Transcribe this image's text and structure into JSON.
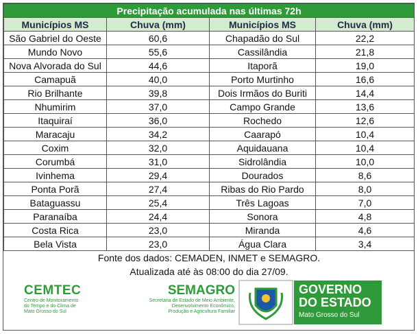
{
  "table": {
    "title": "Precipitação acumulada nas últimas 72h",
    "header": [
      "Municípios MS",
      "Chuva (mm)",
      "Municípios MS",
      "Chuva (mm)"
    ],
    "rows": [
      [
        "São Gabriel do Oeste",
        "60,6",
        "Chapadão do Sul",
        "22,2"
      ],
      [
        "Mundo Novo",
        "55,6",
        "Cassilândia",
        "21,8"
      ],
      [
        "Nova Alvorada do Sul",
        "44,6",
        "Itaporã",
        "19,0"
      ],
      [
        "Camapuã",
        "40,0",
        "Porto Murtinho",
        "16,6"
      ],
      [
        "Rio Brilhante",
        "39,8",
        "Dois Irmãos do Buriti",
        "14,4"
      ],
      [
        "Nhumirim",
        "37,0",
        "Campo Grande",
        "13,6"
      ],
      [
        "Itaquiraí",
        "36,0",
        "Rochedo",
        "12,6"
      ],
      [
        "Maracaju",
        "34,2",
        "Caarapó",
        "10,4"
      ],
      [
        "Coxim",
        "32,0",
        "Aquidauana",
        "10,4"
      ],
      [
        "Corumbá",
        "31,0",
        "Sidrolândia",
        "10,0"
      ],
      [
        "Ivinhema",
        "29,4",
        "Dourados",
        "8,6"
      ],
      [
        "Ponta Porã",
        "27,4",
        "Ribas do Rio Pardo",
        "8,0"
      ],
      [
        "Bataguassu",
        "25,4",
        "Três Lagoas",
        "7,0"
      ],
      [
        "Paranaíba",
        "24,4",
        "Sonora",
        "4,8"
      ],
      [
        "Costa Rica",
        "23,0",
        "Miranda",
        "4,6"
      ],
      [
        "Bela Vista",
        "23,0",
        "Água Clara",
        "3,4"
      ]
    ],
    "footer": [
      "Fonte dos dados: CEMADEN, INMET e SEMAGRO.",
      "Atualizada até às 08:00 do dia 27/09."
    ]
  },
  "logos": {
    "cemtec": {
      "name": "CEMTEC",
      "lines": [
        "Centro de Monitoramento",
        "do Tempo e do Clima de",
        "Mato Grosso do Sul"
      ]
    },
    "semagro": {
      "name": "SEMAGRO",
      "lines": [
        "Secretaria de Estado de Meio Ambiente,",
        "Desenvolvimento Econômico,",
        "Produção e Agricultura Familiar"
      ]
    },
    "governo": {
      "lines": [
        "GOVERNO",
        "DO ESTADO"
      ],
      "state": "Mato Grosso do Sul"
    }
  }
}
